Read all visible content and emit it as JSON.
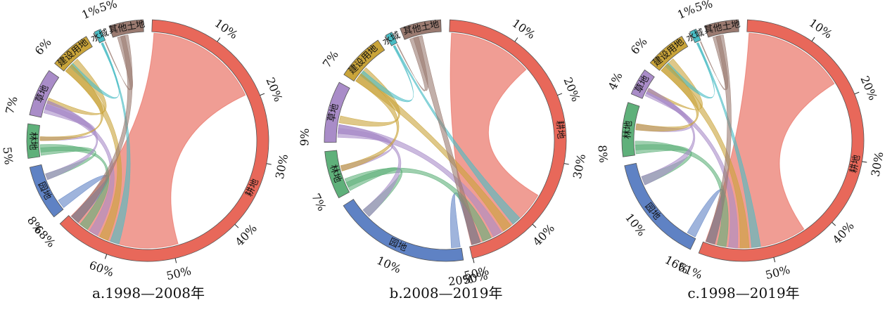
{
  "chart_data": [
    {
      "type": "chord",
      "caption": "a.1998—2008年",
      "categories": [
        {
          "name": "耕地",
          "color": "#e8685a"
        },
        {
          "name": "园地",
          "color": "#5f82c4"
        },
        {
          "name": "林地",
          "color": "#5fb07a"
        },
        {
          "name": "草地",
          "color": "#a98cc8"
        },
        {
          "name": "建设用地",
          "color": "#c9a43a"
        },
        {
          "name": "水域",
          "color": "#49bcc4"
        },
        {
          "name": "其他土地",
          "color": "#9a7a70"
        }
      ],
      "cumulative_ticks": [
        "10%",
        "20%",
        "30%",
        "40%",
        "50%",
        "60%"
      ],
      "segment_percentages": [
        {
          "category": "耕地",
          "label": "68%",
          "value": 68
        },
        {
          "category": "园地",
          "label": "8%",
          "value": 8
        },
        {
          "category": "林地",
          "label": "5%",
          "value": 5
        },
        {
          "category": "草地",
          "label": "7%",
          "value": 7
        },
        {
          "category": "建设用地",
          "label": "6%",
          "value": 6
        },
        {
          "category": "水域",
          "label": "1%",
          "value": 1
        },
        {
          "category": "其他土地",
          "label": "5%",
          "value": 5
        }
      ]
    },
    {
      "type": "chord",
      "caption": "b.2008—2019年",
      "categories": [
        {
          "name": "耕地",
          "color": "#e8685a"
        },
        {
          "name": "园地",
          "color": "#5f82c4"
        },
        {
          "name": "林地",
          "color": "#5fb07a"
        },
        {
          "name": "草地",
          "color": "#a98cc8"
        },
        {
          "name": "建设用地",
          "color": "#c9a43a"
        },
        {
          "name": "水域",
          "color": "#49bcc4"
        },
        {
          "name": "其他土地",
          "color": "#9a7a70"
        }
      ],
      "cumulative_ticks": [
        "10%",
        "20%",
        "30%",
        "40%",
        "50%"
      ],
      "segment_percentages": [
        {
          "category": "耕地",
          "label": "50%",
          "value": 50
        },
        {
          "category": "园地",
          "label": "20%",
          "value": 20
        },
        {
          "category": "林地",
          "label": "7%",
          "value": 7
        },
        {
          "category": "草地",
          "label": "9%",
          "value": 9
        },
        {
          "category": "建设用地",
          "label": "7%",
          "value": 7
        },
        {
          "category": "水域",
          "label": "",
          "value": 1
        },
        {
          "category": "其他土地",
          "label": "",
          "value": 6
        }
      ],
      "extra_ticks": [
        {
          "category": "园地",
          "label": "10%"
        }
      ]
    },
    {
      "type": "chord",
      "caption": "c.1998—2019年",
      "categories": [
        {
          "name": "耕地",
          "color": "#e8685a"
        },
        {
          "name": "园地",
          "color": "#5f82c4"
        },
        {
          "name": "林地",
          "color": "#5fb07a"
        },
        {
          "name": "草地",
          "color": "#a98cc8"
        },
        {
          "name": "建设用地",
          "color": "#c9a43a"
        },
        {
          "name": "水域",
          "color": "#49bcc4"
        },
        {
          "name": "其他土地",
          "color": "#9a7a70"
        }
      ],
      "cumulative_ticks": [
        "10%",
        "20%",
        "30%",
        "40%",
        "50%"
      ],
      "segment_percentages": [
        {
          "category": "耕地",
          "label": "61%",
          "value": 61
        },
        {
          "category": "园地",
          "label": "16%",
          "value": 16
        },
        {
          "category": "林地",
          "label": "8%",
          "value": 8
        },
        {
          "category": "草地",
          "label": "4%",
          "value": 4
        },
        {
          "category": "建设用地",
          "label": "6%",
          "value": 6
        },
        {
          "category": "水域",
          "label": "1%",
          "value": 1
        },
        {
          "category": "其他土地",
          "label": "5%",
          "value": 5
        }
      ],
      "extra_ticks": [
        {
          "category": "园地",
          "label": "10%"
        }
      ]
    }
  ]
}
